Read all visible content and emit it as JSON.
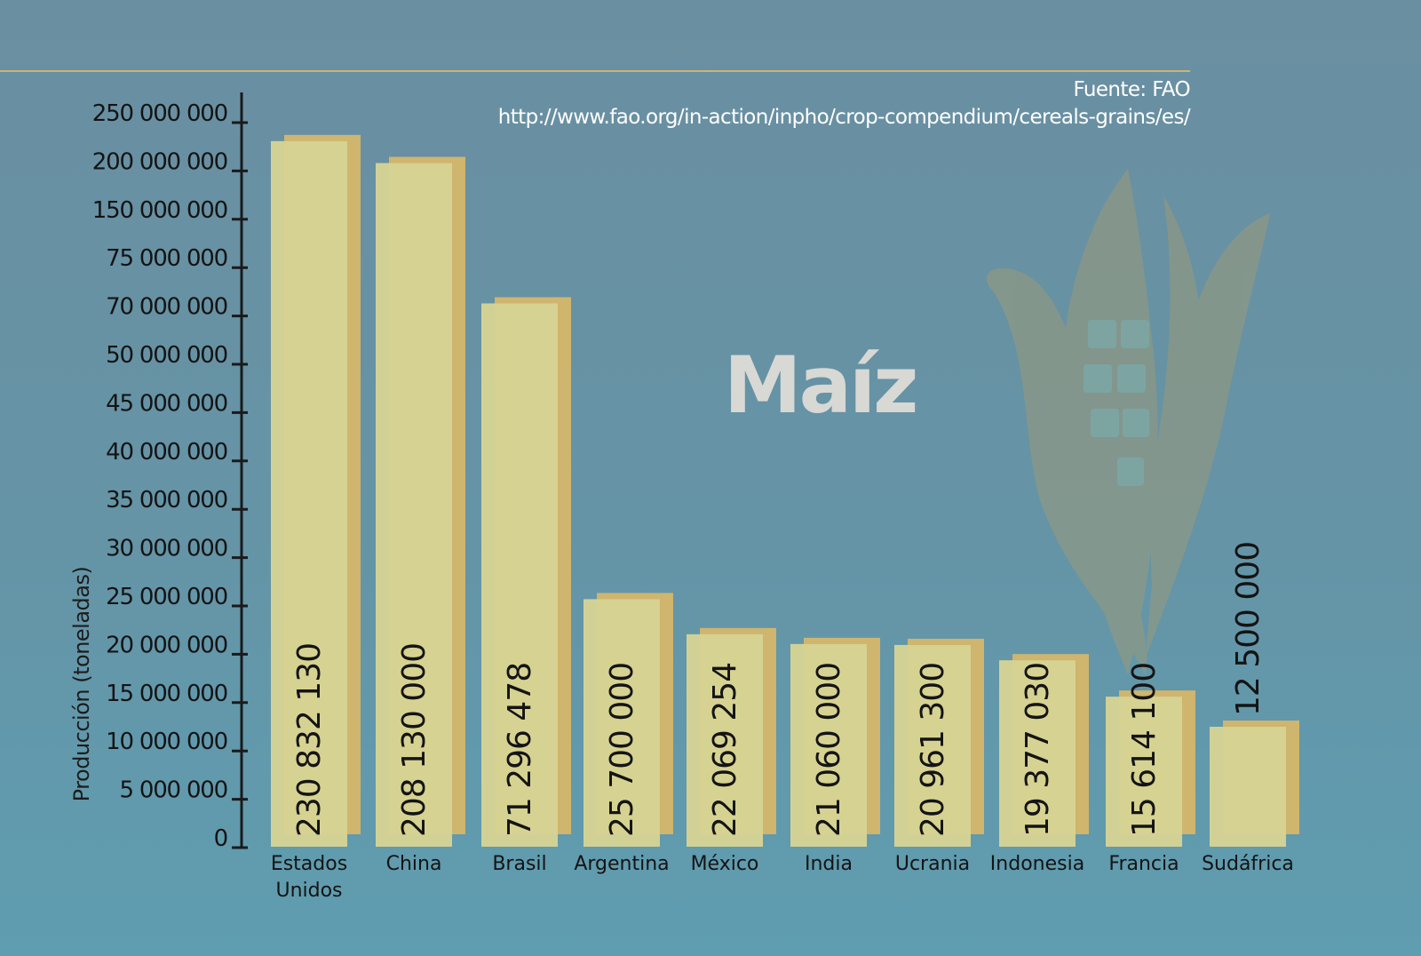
{
  "source_line1": "Fuente: FAO",
  "source_line2": "http://www.fao.org/in-action/inpho/crop-compendium/cereals-grains/es/",
  "chart_data": {
    "type": "bar",
    "title": "Maíz",
    "xlabel": "",
    "ylabel": "Producción (toneladas)",
    "y_ticks": [
      "0",
      "5 000 000",
      "10 000 000",
      "15 000 000",
      "20 000 000",
      "25 000 000",
      "30 000 000",
      "35 000 000",
      "40 000 000",
      "45 000 000",
      "50 000 000",
      "70 000 000",
      "75 000 000",
      "150 000 000",
      "200 000 000",
      "250 000 000"
    ],
    "y_tick_values": [
      0,
      5000000,
      10000000,
      15000000,
      20000000,
      25000000,
      30000000,
      35000000,
      40000000,
      45000000,
      50000000,
      70000000,
      75000000,
      150000000,
      200000000,
      250000000
    ],
    "categories": [
      "Estados Unidos",
      "China",
      "Brasil",
      "Argentina",
      "México",
      "India",
      "Ucrania",
      "Indonesia",
      "Francia",
      "Sudáfrica"
    ],
    "values": [
      230832130,
      208130000,
      71296478,
      25700000,
      22069254,
      21060000,
      20961300,
      19377030,
      15614100,
      12500000
    ],
    "value_labels": [
      "230 832 130",
      "208 130 000",
      "71 296 478",
      "25 700 000",
      "22 069 254",
      "21 060 000",
      "20 961 300",
      "19 377 030",
      "15 614 100",
      "12 500 000"
    ],
    "colors": {
      "bar": "#d6d394",
      "bar_shadow": "#cfb56d",
      "axis": "#1a1a1a",
      "background": "#6594a6"
    },
    "grid": false,
    "legend": "none"
  }
}
